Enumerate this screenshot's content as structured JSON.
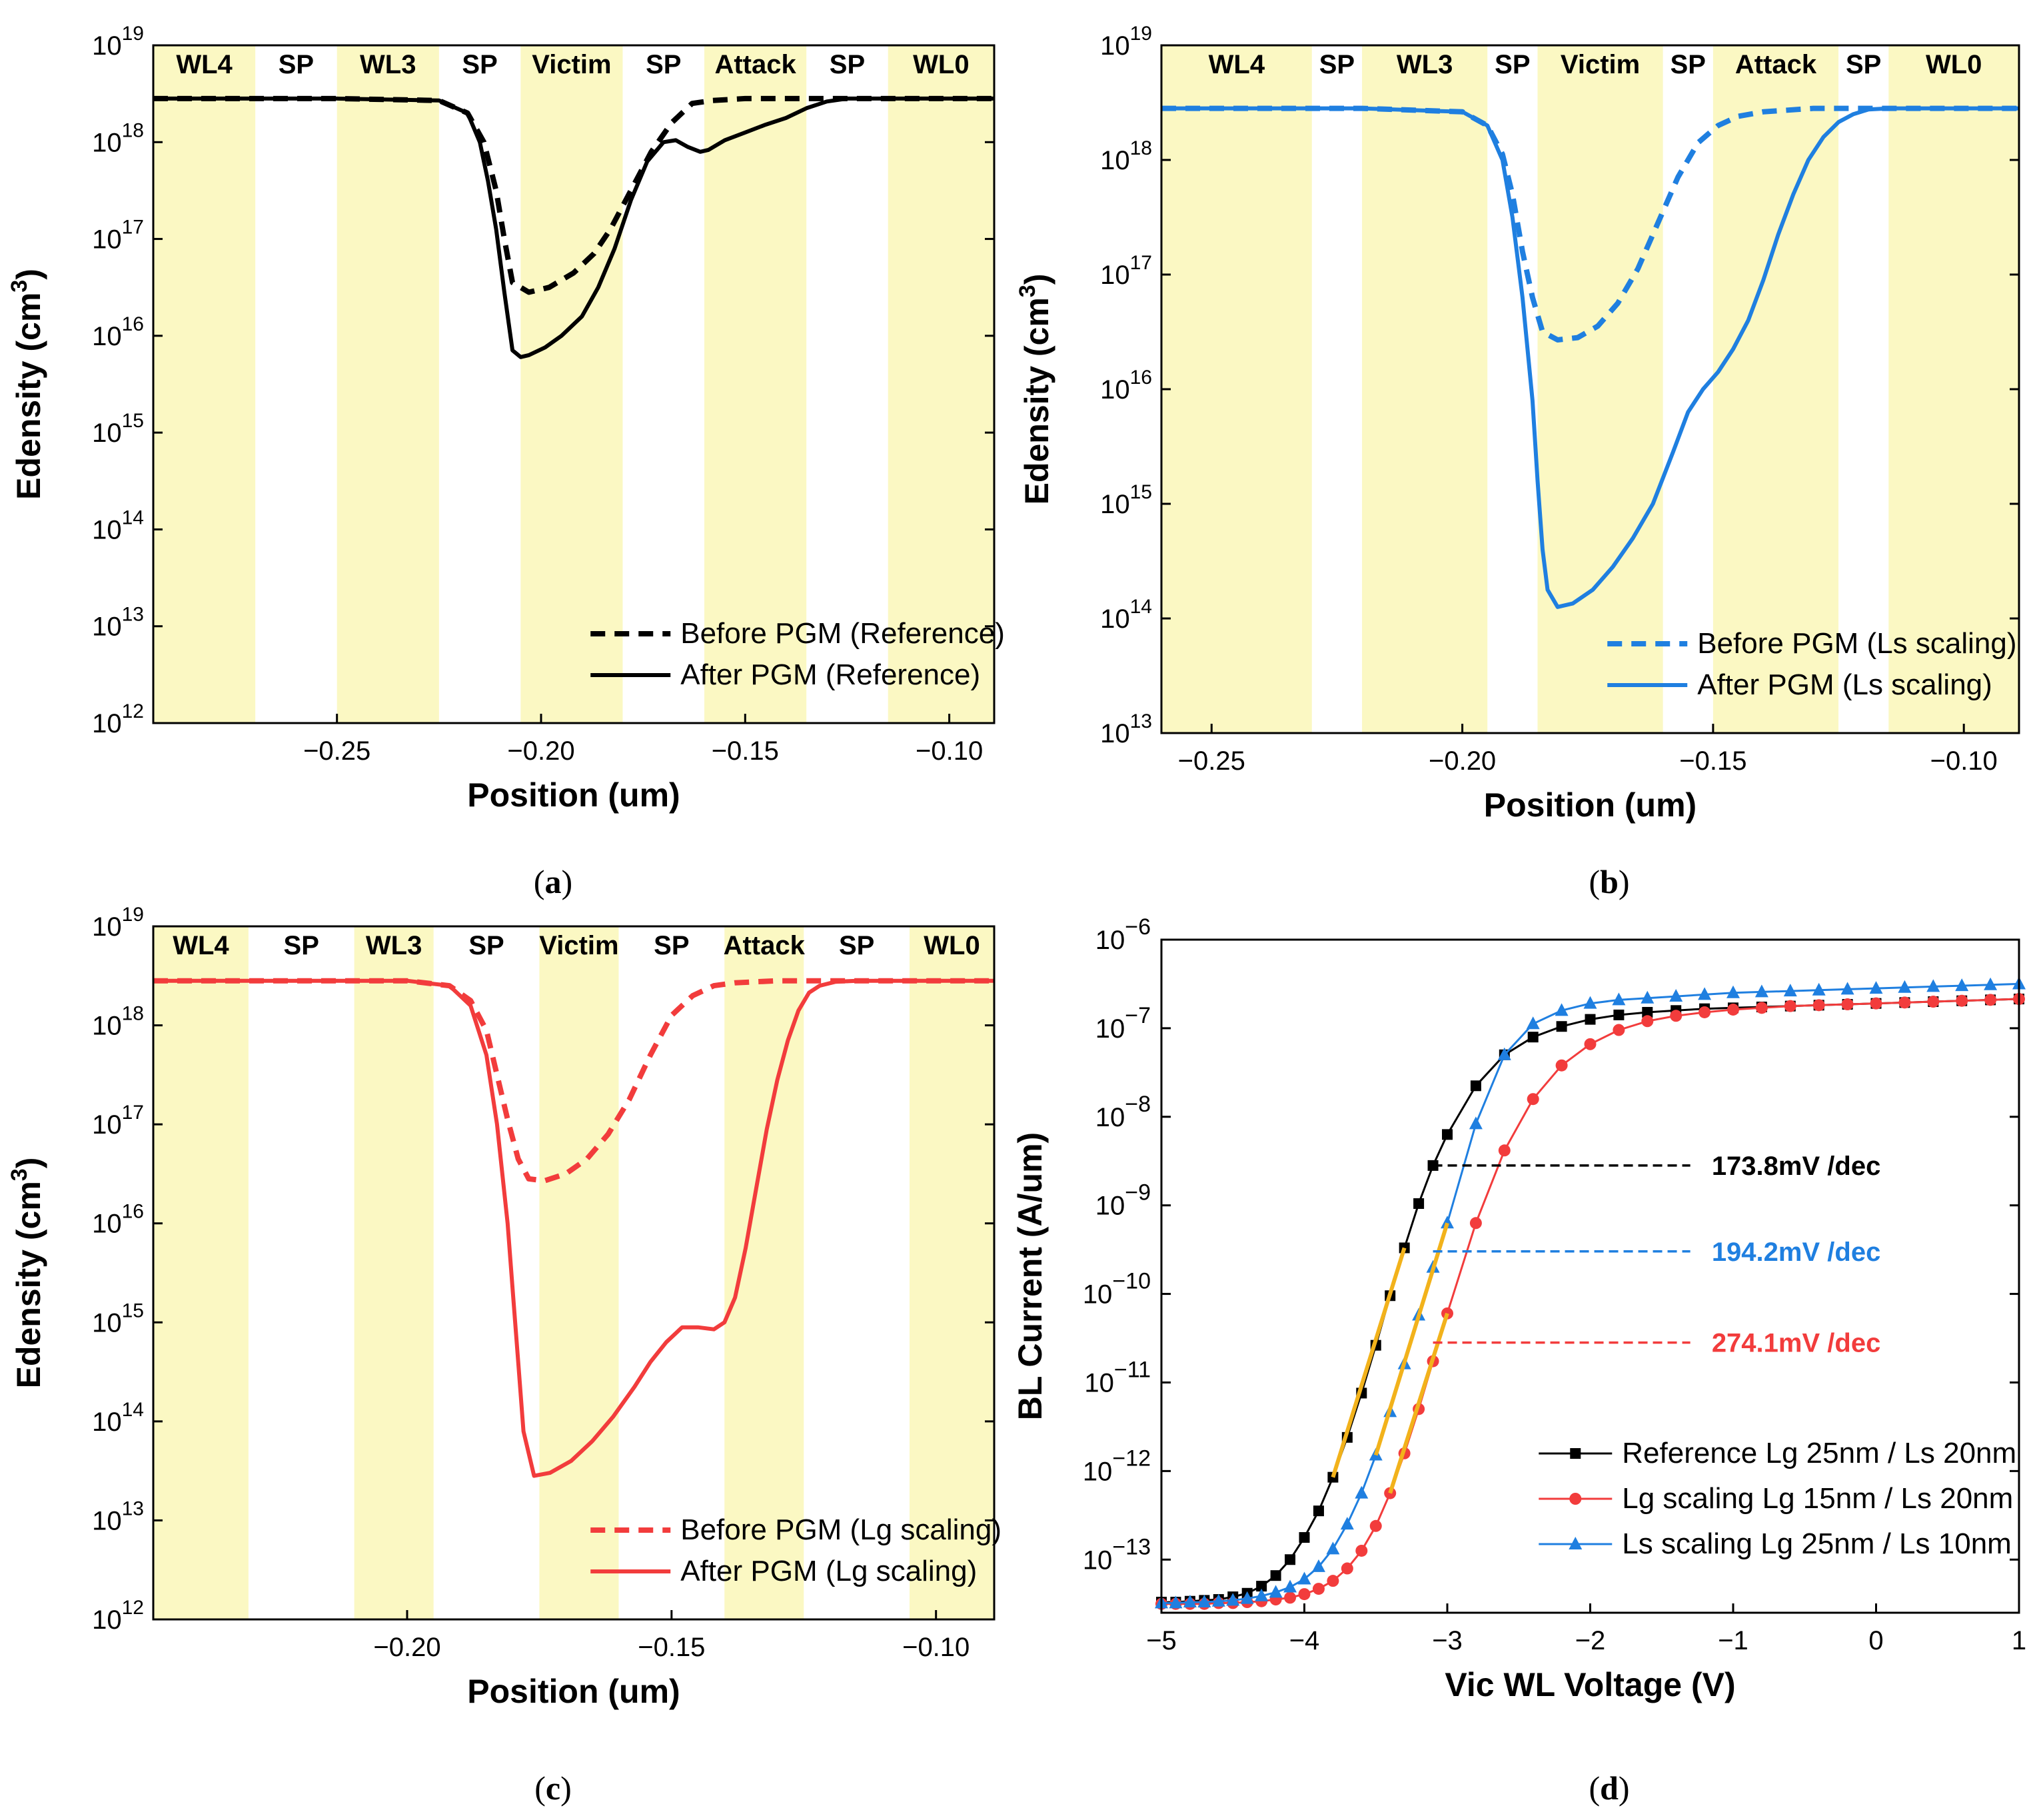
{
  "colors": {
    "highlight": "#fbf8c3",
    "black": "#000000",
    "blue": "#1f7fe0",
    "red": "#f23c3c",
    "fit": "#f2b21b",
    "dash_black": "#000000",
    "dash_blue": "#1f7fe0",
    "dash_red": "#f23c3c"
  },
  "chart_data": [
    {
      "id": "a",
      "panel_label": "a",
      "type": "line",
      "xlabel": "Position (um)",
      "ylabel": "Edensity (cm3)",
      "xlim": [
        -0.295,
        -0.089
      ],
      "ylog_range": [
        12,
        19
      ],
      "xticks": [
        -0.25,
        -0.2,
        -0.15,
        -0.1
      ],
      "xtick_labels": [
        "−0.25",
        "−0.20",
        "−0.15",
        "−0.10"
      ],
      "yticks": [
        12,
        13,
        14,
        15,
        16,
        17,
        18,
        19
      ],
      "regions": [
        {
          "label": "WL4",
          "x0": -0.295,
          "x1": -0.27,
          "highlight": true
        },
        {
          "label": "SP",
          "x0": -0.27,
          "x1": -0.25,
          "highlight": false
        },
        {
          "label": "WL3",
          "x0": -0.25,
          "x1": -0.225,
          "highlight": true
        },
        {
          "label": "SP",
          "x0": -0.225,
          "x1": -0.205,
          "highlight": false
        },
        {
          "label": "Victim",
          "x0": -0.205,
          "x1": -0.18,
          "highlight": true
        },
        {
          "label": "SP",
          "x0": -0.18,
          "x1": -0.16,
          "highlight": false
        },
        {
          "label": "Attack",
          "x0": -0.16,
          "x1": -0.135,
          "highlight": true
        },
        {
          "label": "SP",
          "x0": -0.135,
          "x1": -0.115,
          "highlight": false
        },
        {
          "label": "WL0",
          "x0": -0.115,
          "x1": -0.089,
          "highlight": true
        }
      ],
      "series": [
        {
          "name": "Before PGM (Reference)",
          "style": "dashed",
          "color": "#000000",
          "x": [
            -0.295,
            -0.25,
            -0.225,
            -0.218,
            -0.214,
            -0.211,
            -0.209,
            -0.207,
            -0.203,
            -0.198,
            -0.192,
            -0.187,
            -0.183,
            -0.178,
            -0.173,
            -0.168,
            -0.163,
            -0.158,
            -0.15,
            -0.14,
            -0.13,
            -0.089
          ],
          "y": [
            18.45,
            18.45,
            18.43,
            18.3,
            18.0,
            17.5,
            17.0,
            16.55,
            16.45,
            16.5,
            16.65,
            16.85,
            17.1,
            17.5,
            17.9,
            18.2,
            18.4,
            18.43,
            18.45,
            18.45,
            18.45,
            18.45
          ]
        },
        {
          "name": "After PGM (Reference)",
          "style": "solid",
          "color": "#000000",
          "x": [
            -0.295,
            -0.25,
            -0.225,
            -0.218,
            -0.215,
            -0.213,
            -0.211,
            -0.209,
            -0.207,
            -0.205,
            -0.203,
            -0.199,
            -0.195,
            -0.19,
            -0.186,
            -0.182,
            -0.178,
            -0.174,
            -0.17,
            -0.167,
            -0.164,
            -0.161,
            -0.159,
            -0.155,
            -0.15,
            -0.145,
            -0.14,
            -0.135,
            -0.13,
            -0.125,
            -0.115,
            -0.089
          ],
          "y": [
            18.45,
            18.45,
            18.43,
            18.3,
            18.0,
            17.6,
            17.1,
            16.45,
            15.85,
            15.78,
            15.8,
            15.88,
            16.0,
            16.2,
            16.5,
            16.9,
            17.4,
            17.8,
            18.0,
            18.02,
            17.95,
            17.9,
            17.92,
            18.02,
            18.1,
            18.18,
            18.25,
            18.35,
            18.42,
            18.45,
            18.45,
            18.45
          ]
        }
      ]
    },
    {
      "id": "b",
      "panel_label": "b",
      "type": "line",
      "xlabel": "Position (um)",
      "ylabel": "Edensity (cm3)",
      "xlim": [
        -0.26,
        -0.089
      ],
      "ylog_range": [
        13,
        19
      ],
      "xticks": [
        -0.25,
        -0.2,
        -0.15,
        -0.1
      ],
      "xtick_labels": [
        "−0.25",
        "−0.20",
        "−0.15",
        "−0.10"
      ],
      "yticks": [
        13,
        14,
        15,
        16,
        17,
        18,
        19
      ],
      "regions": [
        {
          "label": "WL4",
          "x0": -0.26,
          "x1": -0.23,
          "highlight": true
        },
        {
          "label": "SP",
          "x0": -0.23,
          "x1": -0.22,
          "highlight": false
        },
        {
          "label": "WL3",
          "x0": -0.22,
          "x1": -0.195,
          "highlight": true
        },
        {
          "label": "SP",
          "x0": -0.195,
          "x1": -0.185,
          "highlight": false
        },
        {
          "label": "Victim",
          "x0": -0.185,
          "x1": -0.16,
          "highlight": true
        },
        {
          "label": "SP",
          "x0": -0.16,
          "x1": -0.15,
          "highlight": false
        },
        {
          "label": "Attack",
          "x0": -0.15,
          "x1": -0.125,
          "highlight": true
        },
        {
          "label": "SP",
          "x0": -0.125,
          "x1": -0.115,
          "highlight": false
        },
        {
          "label": "WL0",
          "x0": -0.115,
          "x1": -0.089,
          "highlight": true
        }
      ],
      "series": [
        {
          "name": "Before PGM (Ls scaling)",
          "style": "dashed",
          "color": "#1f7fe0",
          "x": [
            -0.26,
            -0.22,
            -0.2,
            -0.195,
            -0.192,
            -0.19,
            -0.188,
            -0.186,
            -0.184,
            -0.181,
            -0.177,
            -0.173,
            -0.169,
            -0.165,
            -0.161,
            -0.157,
            -0.153,
            -0.149,
            -0.145,
            -0.14,
            -0.13,
            -0.089
          ],
          "y": [
            18.45,
            18.45,
            18.42,
            18.3,
            18.05,
            17.7,
            17.2,
            16.8,
            16.5,
            16.43,
            16.45,
            16.55,
            16.75,
            17.05,
            17.45,
            17.85,
            18.15,
            18.3,
            18.38,
            18.42,
            18.45,
            18.45
          ]
        },
        {
          "name": "After PGM (Ls scaling)",
          "style": "solid",
          "color": "#1f7fe0",
          "x": [
            -0.26,
            -0.22,
            -0.2,
            -0.195,
            -0.192,
            -0.19,
            -0.188,
            -0.186,
            -0.185,
            -0.184,
            -0.183,
            -0.181,
            -0.178,
            -0.174,
            -0.17,
            -0.166,
            -0.162,
            -0.158,
            -0.155,
            -0.152,
            -0.149,
            -0.146,
            -0.143,
            -0.14,
            -0.137,
            -0.134,
            -0.131,
            -0.128,
            -0.125,
            -0.122,
            -0.119,
            -0.115,
            -0.089
          ],
          "y": [
            18.45,
            18.45,
            18.42,
            18.3,
            18.0,
            17.5,
            16.8,
            15.9,
            15.2,
            14.6,
            14.25,
            14.1,
            14.13,
            14.25,
            14.45,
            14.7,
            15.0,
            15.45,
            15.8,
            16.0,
            16.15,
            16.35,
            16.6,
            16.95,
            17.35,
            17.7,
            18.0,
            18.2,
            18.33,
            18.4,
            18.44,
            18.45,
            18.45
          ]
        }
      ]
    },
    {
      "id": "c",
      "panel_label": "c",
      "type": "line",
      "xlabel": "Position (um)",
      "ylabel": "Edensity (cm3)",
      "xlim": [
        -0.248,
        -0.089
      ],
      "ylog_range": [
        12,
        19
      ],
      "xticks": [
        -0.2,
        -0.15,
        -0.1
      ],
      "xtick_labels": [
        "−0.20",
        "−0.15",
        "−0.10"
      ],
      "yticks": [
        12,
        13,
        14,
        15,
        16,
        17,
        18,
        19
      ],
      "regions": [
        {
          "label": "WL4",
          "x0": -0.248,
          "x1": -0.23,
          "highlight": true
        },
        {
          "label": "SP",
          "x0": -0.23,
          "x1": -0.21,
          "highlight": false
        },
        {
          "label": "WL3",
          "x0": -0.21,
          "x1": -0.195,
          "highlight": true
        },
        {
          "label": "SP",
          "x0": -0.195,
          "x1": -0.175,
          "highlight": false
        },
        {
          "label": "Victim",
          "x0": -0.175,
          "x1": -0.16,
          "highlight": true
        },
        {
          "label": "SP",
          "x0": -0.16,
          "x1": -0.14,
          "highlight": false
        },
        {
          "label": "Attack",
          "x0": -0.14,
          "x1": -0.125,
          "highlight": true
        },
        {
          "label": "SP",
          "x0": -0.125,
          "x1": -0.105,
          "highlight": false
        },
        {
          "label": "WL0",
          "x0": -0.105,
          "x1": -0.089,
          "highlight": true
        }
      ],
      "series": [
        {
          "name": "Before PGM (Lg scaling)",
          "style": "dashed",
          "color": "#f23c3c",
          "x": [
            -0.248,
            -0.2,
            -0.192,
            -0.188,
            -0.185,
            -0.183,
            -0.181,
            -0.179,
            -0.177,
            -0.174,
            -0.17,
            -0.166,
            -0.162,
            -0.158,
            -0.154,
            -0.15,
            -0.146,
            -0.142,
            -0.138,
            -0.13,
            -0.089
          ],
          "y": [
            18.45,
            18.45,
            18.4,
            18.25,
            17.95,
            17.5,
            17.05,
            16.65,
            16.45,
            16.43,
            16.5,
            16.65,
            16.9,
            17.25,
            17.7,
            18.1,
            18.3,
            18.4,
            18.43,
            18.45,
            18.45
          ]
        },
        {
          "name": "After PGM (Lg scaling)",
          "style": "solid",
          "color": "#f23c3c",
          "x": [
            -0.248,
            -0.2,
            -0.192,
            -0.188,
            -0.185,
            -0.183,
            -0.181,
            -0.18,
            -0.179,
            -0.178,
            -0.176,
            -0.173,
            -0.169,
            -0.165,
            -0.161,
            -0.157,
            -0.154,
            -0.151,
            -0.148,
            -0.145,
            -0.142,
            -0.14,
            -0.138,
            -0.136,
            -0.134,
            -0.132,
            -0.13,
            -0.128,
            -0.126,
            -0.124,
            -0.122,
            -0.119,
            -0.115,
            -0.089
          ],
          "y": [
            18.45,
            18.45,
            18.4,
            18.2,
            17.7,
            17.0,
            16.0,
            15.3,
            14.6,
            13.9,
            13.45,
            13.48,
            13.6,
            13.8,
            14.05,
            14.35,
            14.6,
            14.8,
            14.95,
            14.95,
            14.93,
            15.0,
            15.25,
            15.75,
            16.35,
            16.95,
            17.45,
            17.85,
            18.15,
            18.33,
            18.4,
            18.44,
            18.45,
            18.45
          ]
        }
      ]
    },
    {
      "id": "d",
      "panel_label": "d",
      "type": "scatter",
      "xlabel": "Vic WL Voltage (V)",
      "ylabel": "BL Current (A/um)",
      "xlim": [
        -5,
        1
      ],
      "ylog_range": [
        -13.6,
        -6
      ],
      "xticks": [
        -5,
        -4,
        -3,
        -2,
        -1,
        0,
        1
      ],
      "xtick_labels": [
        "−5",
        "−4",
        "−3",
        "−2",
        "−1",
        "0",
        "1"
      ],
      "yticks": [
        -13,
        -12,
        -11,
        -10,
        -9,
        -8,
        -7,
        -6
      ],
      "series": [
        {
          "name": "Reference Lg 25nm / Ls 20nm",
          "marker": "square",
          "color": "#000000",
          "x": [
            -5.0,
            -4.9,
            -4.8,
            -4.7,
            -4.6,
            -4.5,
            -4.4,
            -4.3,
            -4.2,
            -4.1,
            -4.0,
            -3.9,
            -3.8,
            -3.7,
            -3.6,
            -3.5,
            -3.4,
            -3.3,
            -3.2,
            -3.1,
            -3.0,
            -2.8,
            -2.6,
            -2.4,
            -2.2,
            -2.0,
            -1.8,
            -1.6,
            -1.4,
            -1.2,
            -1.0,
            -0.8,
            -0.6,
            -0.4,
            -0.2,
            0.0,
            0.2,
            0.4,
            0.6,
            0.8,
            1.0
          ],
          "y": [
            -13.48,
            -13.48,
            -13.47,
            -13.46,
            -13.45,
            -13.42,
            -13.38,
            -13.3,
            -13.18,
            -13.0,
            -12.75,
            -12.45,
            -12.07,
            -11.62,
            -11.12,
            -10.58,
            -10.02,
            -9.48,
            -8.98,
            -8.55,
            -8.2,
            -7.65,
            -7.3,
            -7.1,
            -6.98,
            -6.9,
            -6.85,
            -6.82,
            -6.8,
            -6.78,
            -6.77,
            -6.76,
            -6.75,
            -6.74,
            -6.73,
            -6.72,
            -6.71,
            -6.7,
            -6.69,
            -6.68,
            -6.67
          ]
        },
        {
          "name": "Lg scaling Lg 15nm / Ls 20nm",
          "marker": "circle",
          "color": "#f23c3c",
          "x": [
            -5.0,
            -4.9,
            -4.8,
            -4.7,
            -4.6,
            -4.5,
            -4.4,
            -4.3,
            -4.2,
            -4.1,
            -4.0,
            -3.9,
            -3.8,
            -3.7,
            -3.6,
            -3.5,
            -3.4,
            -3.3,
            -3.2,
            -3.1,
            -3.0,
            -2.8,
            -2.6,
            -2.4,
            -2.2,
            -2.0,
            -1.8,
            -1.6,
            -1.4,
            -1.2,
            -1.0,
            -0.8,
            -0.6,
            -0.4,
            -0.2,
            0.0,
            0.2,
            0.4,
            0.6,
            0.8,
            1.0
          ],
          "y": [
            -13.5,
            -13.5,
            -13.5,
            -13.5,
            -13.49,
            -13.49,
            -13.48,
            -13.47,
            -13.45,
            -13.43,
            -13.39,
            -13.33,
            -13.24,
            -13.1,
            -12.9,
            -12.62,
            -12.25,
            -11.8,
            -11.3,
            -10.76,
            -10.22,
            -9.2,
            -8.38,
            -7.8,
            -7.42,
            -7.18,
            -7.02,
            -6.92,
            -6.86,
            -6.82,
            -6.79,
            -6.77,
            -6.75,
            -6.74,
            -6.73,
            -6.72,
            -6.71,
            -6.7,
            -6.69,
            -6.68,
            -6.67
          ]
        },
        {
          "name": "Ls scaling Lg 25nm / Ls 10nm",
          "marker": "triangle",
          "color": "#1f7fe0",
          "x": [
            -5.0,
            -4.9,
            -4.8,
            -4.7,
            -4.6,
            -4.5,
            -4.4,
            -4.3,
            -4.2,
            -4.1,
            -4.0,
            -3.9,
            -3.8,
            -3.7,
            -3.6,
            -3.5,
            -3.4,
            -3.3,
            -3.2,
            -3.1,
            -3.0,
            -2.8,
            -2.6,
            -2.4,
            -2.2,
            -2.0,
            -1.8,
            -1.6,
            -1.4,
            -1.2,
            -1.0,
            -0.8,
            -0.6,
            -0.4,
            -0.2,
            0.0,
            0.2,
            0.4,
            0.6,
            0.8,
            1.0
          ],
          "y": [
            -13.49,
            -13.49,
            -13.48,
            -13.48,
            -13.47,
            -13.46,
            -13.44,
            -13.41,
            -13.37,
            -13.31,
            -13.22,
            -13.08,
            -12.88,
            -12.6,
            -12.25,
            -11.82,
            -11.33,
            -10.79,
            -10.24,
            -9.7,
            -9.2,
            -8.08,
            -7.3,
            -6.95,
            -6.8,
            -6.72,
            -6.68,
            -6.66,
            -6.64,
            -6.62,
            -6.6,
            -6.59,
            -6.58,
            -6.57,
            -6.56,
            -6.55,
            -6.54,
            -6.53,
            -6.52,
            -6.51,
            -6.5
          ]
        }
      ],
      "fits": [
        {
          "series": "Reference",
          "x": [
            -3.85,
            -3.3
          ]
        },
        {
          "series": "Ls scaling",
          "x": [
            -3.55,
            -2.98
          ]
        },
        {
          "series": "Lg scaling",
          "x": [
            -3.45,
            -2.9
          ]
        }
      ],
      "annotations": [
        {
          "label": "173.8mV /dec",
          "color": "#000000",
          "line_x": [
            -3.1,
            -1.3
          ],
          "y": -8.55,
          "text_x": -1.15
        },
        {
          "label": "194.2mV /dec",
          "color": "#1f7fe0",
          "line_x": [
            -3.1,
            -1.3
          ],
          "y": -9.52,
          "text_x": -1.15
        },
        {
          "label": "274.1mV /dec",
          "color": "#f23c3c",
          "line_x": [
            -3.1,
            -1.3
          ],
          "y": -10.55,
          "text_x": -1.15
        }
      ]
    }
  ]
}
